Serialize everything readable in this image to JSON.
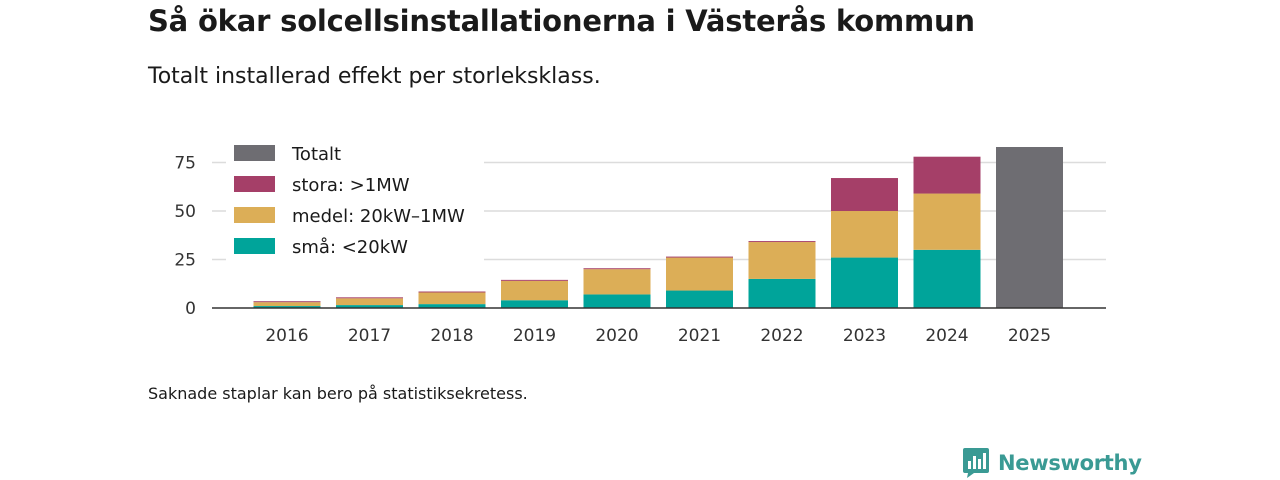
{
  "title": "Så ökar solcellsinstallationerna i Västerås kommun",
  "subtitle": "Totalt installerad effekt per storleksklass.",
  "footnote": "Saknade staplar kan bero på statistiksekretess.",
  "brand": {
    "name": "Newsworthy",
    "icon": "newsworthy-logo-icon",
    "color": "#3a9a94"
  },
  "chart_data": {
    "type": "bar",
    "stacked": true,
    "categories": [
      "2016",
      "2017",
      "2018",
      "2019",
      "2020",
      "2021",
      "2022",
      "2023",
      "2024",
      "2025"
    ],
    "series": [
      {
        "name": "små: <20kW",
        "color": "#00a49a",
        "values": [
          1,
          1.5,
          2,
          4,
          7,
          9,
          15,
          26,
          30,
          null
        ]
      },
      {
        "name": "medel: 20kW–1MW",
        "color": "#dcae57",
        "values": [
          2,
          3.5,
          6,
          10,
          13,
          17,
          19,
          24,
          29,
          null
        ]
      },
      {
        "name": "stora: >1MW",
        "color": "#a53f68",
        "values": [
          0.5,
          0.5,
          0.5,
          0.5,
          0.5,
          0.5,
          0.5,
          17,
          19,
          null
        ]
      },
      {
        "name": "Totalt",
        "color": "#6e6d72",
        "values": [
          null,
          null,
          null,
          null,
          null,
          null,
          null,
          null,
          null,
          83
        ]
      }
    ],
    "legend": [
      "Totalt",
      "stora: >1MW",
      "medel: 20kW–1MW",
      "små: <20kW"
    ],
    "yticks": [
      0,
      25,
      50,
      75
    ],
    "ylim": [
      0,
      83
    ],
    "xlabel": "",
    "ylabel": "",
    "grid": true,
    "legend_position": "top-left"
  }
}
